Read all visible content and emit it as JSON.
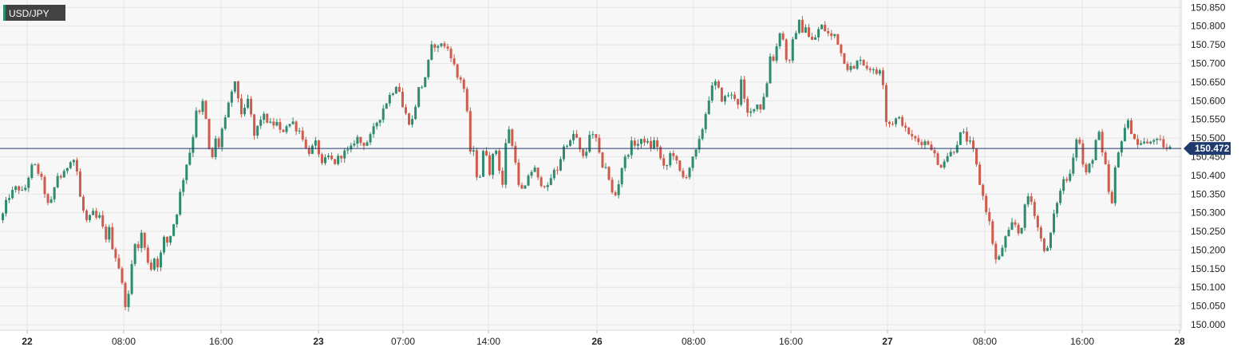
{
  "chart_data": {
    "type": "candlestick",
    "symbol": "USD/JPY",
    "current_price": "150.472",
    "ylim": [
      149.985,
      150.87
    ],
    "y_ticks": [
      "150.000",
      "150.050",
      "150.100",
      "150.150",
      "150.200",
      "150.250",
      "150.300",
      "150.350",
      "150.400",
      "150.450",
      "150.500",
      "150.550",
      "150.600",
      "150.650",
      "150.700",
      "150.750",
      "150.800",
      "150.850"
    ],
    "x_ticks": [
      {
        "label": "22",
        "day": true
      },
      {
        "label": "08:00",
        "day": false
      },
      {
        "label": "16:00",
        "day": false
      },
      {
        "label": "23",
        "day": true
      },
      {
        "label": "07:00",
        "day": false
      },
      {
        "label": "14:00",
        "day": false
      },
      {
        "label": "26",
        "day": true
      },
      {
        "label": "08:00",
        "day": false
      },
      {
        "label": "16:00",
        "day": false
      },
      {
        "label": "27",
        "day": true
      },
      {
        "label": "08:00",
        "day": false
      },
      {
        "label": "16:00",
        "day": false
      },
      {
        "label": "28",
        "day": true
      }
    ],
    "close_path": [
      [
        0,
        150.28
      ],
      [
        4,
        150.31
      ],
      [
        8,
        150.34
      ],
      [
        12,
        150.35
      ],
      [
        16,
        150.36
      ],
      [
        20,
        150.37
      ],
      [
        24,
        150.36
      ],
      [
        28,
        150.35
      ],
      [
        32,
        150.38
      ],
      [
        36,
        150.41
      ],
      [
        40,
        150.43
      ],
      [
        44,
        150.42
      ],
      [
        48,
        150.4
      ],
      [
        52,
        150.38
      ],
      [
        56,
        150.34
      ],
      [
        60,
        150.31
      ],
      [
        64,
        150.34
      ],
      [
        68,
        150.38
      ],
      [
        72,
        150.41
      ],
      [
        76,
        150.39
      ],
      [
        80,
        150.41
      ],
      [
        84,
        150.43
      ],
      [
        88,
        150.45
      ],
      [
        92,
        150.44
      ],
      [
        96,
        150.4
      ],
      [
        100,
        150.32
      ],
      [
        104,
        150.3
      ],
      [
        108,
        150.27
      ],
      [
        112,
        150.29
      ],
      [
        116,
        150.3
      ],
      [
        120,
        150.28
      ],
      [
        124,
        150.29
      ],
      [
        128,
        150.25
      ],
      [
        132,
        150.23
      ],
      [
        136,
        150.26
      ],
      [
        140,
        150.2
      ],
      [
        144,
        150.18
      ],
      [
        148,
        150.15
      ],
      [
        152,
        150.1
      ],
      [
        156,
        150.05
      ],
      [
        160,
        150.08
      ],
      [
        164,
        150.17
      ],
      [
        168,
        150.23
      ],
      [
        172,
        150.2
      ],
      [
        176,
        150.25
      ],
      [
        180,
        150.2
      ],
      [
        184,
        150.17
      ],
      [
        188,
        150.15
      ],
      [
        192,
        150.18
      ],
      [
        196,
        150.16
      ],
      [
        200,
        150.19
      ],
      [
        204,
        150.23
      ],
      [
        208,
        150.22
      ],
      [
        212,
        150.24
      ],
      [
        216,
        150.27
      ],
      [
        220,
        150.3
      ],
      [
        224,
        150.35
      ],
      [
        228,
        150.39
      ],
      [
        232,
        150.43
      ],
      [
        236,
        150.46
      ],
      [
        240,
        150.5
      ],
      [
        244,
        150.58
      ],
      [
        248,
        150.56
      ],
      [
        252,
        150.6
      ],
      [
        256,
        150.56
      ],
      [
        260,
        150.47
      ],
      [
        264,
        150.44
      ],
      [
        268,
        150.5
      ],
      [
        272,
        150.47
      ],
      [
        276,
        150.52
      ],
      [
        280,
        150.54
      ],
      [
        284,
        150.58
      ],
      [
        288,
        150.62
      ],
      [
        292,
        150.65
      ],
      [
        296,
        150.62
      ],
      [
        300,
        150.57
      ],
      [
        304,
        150.56
      ],
      [
        308,
        150.61
      ],
      [
        312,
        150.58
      ],
      [
        316,
        150.5
      ],
      [
        320,
        150.52
      ],
      [
        324,
        150.55
      ],
      [
        328,
        150.56
      ],
      [
        332,
        150.55
      ],
      [
        336,
        150.54
      ],
      [
        340,
        150.53
      ],
      [
        344,
        150.55
      ],
      [
        348,
        150.52
      ],
      [
        352,
        150.51
      ],
      [
        356,
        150.54
      ],
      [
        360,
        150.53
      ],
      [
        364,
        150.55
      ],
      [
        368,
        150.53
      ],
      [
        372,
        150.52
      ],
      [
        376,
        150.52
      ],
      [
        380,
        150.48
      ],
      [
        384,
        150.46
      ],
      [
        388,
        150.47
      ],
      [
        392,
        150.48
      ],
      [
        396,
        150.49
      ],
      [
        400,
        150.43
      ],
      [
        404,
        150.42
      ],
      [
        408,
        150.46
      ],
      [
        412,
        150.44
      ],
      [
        416,
        150.44
      ],
      [
        420,
        150.43
      ],
      [
        424,
        150.46
      ],
      [
        428,
        150.45
      ],
      [
        432,
        150.47
      ],
      [
        436,
        150.46
      ],
      [
        440,
        150.48
      ],
      [
        444,
        150.5
      ],
      [
        448,
        150.5
      ],
      [
        452,
        150.48
      ],
      [
        456,
        150.49
      ],
      [
        460,
        150.49
      ],
      [
        464,
        150.51
      ],
      [
        468,
        150.53
      ],
      [
        472,
        150.55
      ],
      [
        476,
        150.56
      ],
      [
        480,
        150.59
      ],
      [
        484,
        150.6
      ],
      [
        488,
        150.62
      ],
      [
        492,
        150.63
      ],
      [
        496,
        150.65
      ],
      [
        500,
        150.62
      ],
      [
        504,
        150.57
      ],
      [
        508,
        150.56
      ],
      [
        512,
        150.54
      ],
      [
        516,
        150.55
      ],
      [
        520,
        150.6
      ],
      [
        524,
        150.64
      ],
      [
        528,
        150.64
      ],
      [
        532,
        150.67
      ],
      [
        536,
        150.71
      ],
      [
        540,
        150.75
      ],
      [
        544,
        150.75
      ],
      [
        548,
        150.74
      ],
      [
        552,
        150.76
      ],
      [
        556,
        150.74
      ],
      [
        560,
        150.74
      ],
      [
        564,
        150.72
      ],
      [
        568,
        150.69
      ],
      [
        572,
        150.66
      ],
      [
        576,
        150.66
      ],
      [
        580,
        150.63
      ],
      [
        584,
        150.56
      ],
      [
        588,
        150.46
      ],
      [
        592,
        150.46
      ],
      [
        596,
        150.4
      ],
      [
        600,
        150.4
      ],
      [
        604,
        150.46
      ],
      [
        608,
        150.46
      ],
      [
        612,
        150.41
      ],
      [
        616,
        150.45
      ],
      [
        620,
        150.47
      ],
      [
        624,
        150.42
      ],
      [
        628,
        150.37
      ],
      [
        632,
        150.48
      ],
      [
        636,
        150.53
      ],
      [
        640,
        150.48
      ],
      [
        644,
        150.45
      ],
      [
        648,
        150.37
      ],
      [
        652,
        150.36
      ],
      [
        656,
        150.36
      ],
      [
        660,
        150.4
      ],
      [
        664,
        150.41
      ],
      [
        668,
        150.42
      ],
      [
        672,
        150.39
      ],
      [
        676,
        150.38
      ],
      [
        680,
        150.38
      ],
      [
        684,
        150.36
      ],
      [
        688,
        150.39
      ],
      [
        692,
        150.41
      ],
      [
        696,
        150.41
      ],
      [
        700,
        150.44
      ],
      [
        704,
        150.47
      ],
      [
        708,
        150.49
      ],
      [
        712,
        150.48
      ],
      [
        716,
        150.51
      ],
      [
        720,
        150.51
      ],
      [
        724,
        150.47
      ],
      [
        728,
        150.45
      ],
      [
        732,
        150.44
      ],
      [
        736,
        150.52
      ],
      [
        740,
        150.5
      ],
      [
        744,
        150.51
      ],
      [
        748,
        150.47
      ],
      [
        752,
        150.42
      ],
      [
        756,
        150.44
      ],
      [
        760,
        150.4
      ],
      [
        764,
        150.36
      ],
      [
        768,
        150.34
      ],
      [
        772,
        150.36
      ],
      [
        776,
        150.41
      ],
      [
        780,
        150.44
      ],
      [
        784,
        150.45
      ],
      [
        788,
        150.48
      ],
      [
        792,
        150.49
      ],
      [
        796,
        150.48
      ],
      [
        800,
        150.49
      ],
      [
        804,
        150.49
      ],
      [
        808,
        150.5
      ],
      [
        812,
        150.47
      ],
      [
        816,
        150.48
      ],
      [
        820,
        150.5
      ],
      [
        824,
        150.46
      ],
      [
        828,
        150.43
      ],
      [
        832,
        150.41
      ],
      [
        836,
        150.44
      ],
      [
        840,
        150.47
      ],
      [
        844,
        150.45
      ],
      [
        848,
        150.42
      ],
      [
        852,
        150.4
      ],
      [
        856,
        150.39
      ],
      [
        860,
        150.41
      ],
      [
        864,
        150.43
      ],
      [
        868,
        150.45
      ],
      [
        872,
        150.47
      ],
      [
        876,
        150.5
      ],
      [
        880,
        150.54
      ],
      [
        884,
        150.58
      ],
      [
        888,
        150.62
      ],
      [
        892,
        150.64
      ],
      [
        896,
        150.65
      ],
      [
        900,
        150.62
      ],
      [
        904,
        150.6
      ],
      [
        908,
        150.61
      ],
      [
        912,
        150.62
      ],
      [
        916,
        150.61
      ],
      [
        920,
        150.61
      ],
      [
        924,
        150.59
      ],
      [
        928,
        150.67
      ],
      [
        932,
        150.58
      ],
      [
        936,
        150.56
      ],
      [
        940,
        150.57
      ],
      [
        944,
        150.59
      ],
      [
        948,
        150.59
      ],
      [
        952,
        150.58
      ],
      [
        956,
        150.62
      ],
      [
        960,
        150.65
      ],
      [
        964,
        150.73
      ],
      [
        968,
        150.71
      ],
      [
        972,
        150.75
      ],
      [
        976,
        150.79
      ],
      [
        980,
        150.76
      ],
      [
        984,
        150.71
      ],
      [
        988,
        150.7
      ],
      [
        992,
        150.76
      ],
      [
        996,
        150.79
      ],
      [
        1000,
        150.81
      ],
      [
        1004,
        150.79
      ],
      [
        1008,
        150.8
      ],
      [
        1012,
        150.77
      ],
      [
        1016,
        150.76
      ],
      [
        1020,
        150.77
      ],
      [
        1024,
        150.79
      ],
      [
        1028,
        150.8
      ],
      [
        1032,
        150.79
      ],
      [
        1036,
        150.78
      ],
      [
        1040,
        150.77
      ],
      [
        1044,
        150.78
      ],
      [
        1048,
        150.76
      ],
      [
        1052,
        150.73
      ],
      [
        1056,
        150.71
      ],
      [
        1060,
        150.69
      ],
      [
        1064,
        150.69
      ],
      [
        1068,
        150.68
      ],
      [
        1072,
        150.7
      ],
      [
        1076,
        150.72
      ],
      [
        1080,
        150.7
      ],
      [
        1084,
        150.69
      ],
      [
        1088,
        150.69
      ],
      [
        1092,
        150.68
      ],
      [
        1096,
        150.67
      ],
      [
        1100,
        150.69
      ],
      [
        1104,
        150.68
      ],
      [
        1108,
        150.55
      ],
      [
        1112,
        150.54
      ],
      [
        1116,
        150.54
      ],
      [
        1120,
        150.55
      ],
      [
        1124,
        150.55
      ],
      [
        1128,
        150.55
      ],
      [
        1132,
        150.52
      ],
      [
        1136,
        150.52
      ],
      [
        1140,
        150.5
      ],
      [
        1144,
        150.5
      ],
      [
        1148,
        150.49
      ],
      [
        1152,
        150.49
      ],
      [
        1156,
        150.49
      ],
      [
        1160,
        150.49
      ],
      [
        1164,
        150.48
      ],
      [
        1168,
        150.47
      ],
      [
        1172,
        150.43
      ],
      [
        1176,
        150.42
      ],
      [
        1180,
        150.44
      ],
      [
        1184,
        150.45
      ],
      [
        1188,
        150.46
      ],
      [
        1192,
        150.46
      ],
      [
        1196,
        150.48
      ],
      [
        1200,
        150.5
      ],
      [
        1204,
        150.52
      ],
      [
        1208,
        150.5
      ],
      [
        1212,
        150.49
      ],
      [
        1216,
        150.48
      ],
      [
        1220,
        150.45
      ],
      [
        1224,
        150.4
      ],
      [
        1228,
        150.36
      ],
      [
        1232,
        150.33
      ],
      [
        1236,
        150.29
      ],
      [
        1240,
        150.26
      ],
      [
        1244,
        150.19
      ],
      [
        1248,
        150.16
      ],
      [
        1252,
        150.19
      ],
      [
        1256,
        150.22
      ],
      [
        1260,
        150.24
      ],
      [
        1264,
        150.25
      ],
      [
        1268,
        150.28
      ],
      [
        1272,
        150.26
      ],
      [
        1276,
        150.24
      ],
      [
        1280,
        150.28
      ],
      [
        1284,
        150.33
      ],
      [
        1288,
        150.35
      ],
      [
        1292,
        150.32
      ],
      [
        1296,
        150.29
      ],
      [
        1300,
        150.25
      ],
      [
        1304,
        150.22
      ],
      [
        1308,
        150.2
      ],
      [
        1312,
        150.2
      ],
      [
        1316,
        150.26
      ],
      [
        1320,
        150.3
      ],
      [
        1324,
        150.34
      ],
      [
        1328,
        150.36
      ],
      [
        1332,
        150.4
      ],
      [
        1336,
        150.38
      ],
      [
        1340,
        150.42
      ],
      [
        1344,
        150.46
      ],
      [
        1348,
        150.51
      ],
      [
        1352,
        150.48
      ],
      [
        1356,
        150.42
      ],
      [
        1360,
        150.4
      ],
      [
        1364,
        150.43
      ],
      [
        1368,
        150.45
      ],
      [
        1372,
        150.5
      ],
      [
        1376,
        150.51
      ],
      [
        1380,
        150.45
      ],
      [
        1384,
        150.42
      ],
      [
        1388,
        150.35
      ],
      [
        1392,
        150.32
      ],
      [
        1396,
        150.42
      ],
      [
        1400,
        150.46
      ],
      [
        1404,
        150.5
      ],
      [
        1408,
        150.53
      ],
      [
        1412,
        150.54
      ],
      [
        1416,
        150.52
      ],
      [
        1420,
        150.5
      ],
      [
        1424,
        150.48
      ],
      [
        1428,
        150.49
      ],
      [
        1432,
        150.49
      ],
      [
        1436,
        150.48
      ],
      [
        1440,
        150.49
      ],
      [
        1444,
        150.5
      ],
      [
        1448,
        150.49
      ],
      [
        1452,
        150.49
      ],
      [
        1456,
        150.48
      ],
      [
        1460,
        150.47
      ],
      [
        1464,
        150.472
      ]
    ]
  },
  "colors": {
    "up": "#2e8b6f",
    "down": "#cd5c4c",
    "grid": "#e4e4e4",
    "plot_bg": "#f7f7f7",
    "price_line": "#1f3a6e",
    "badge": "#424242",
    "price_badge": "#1f3a6e"
  }
}
